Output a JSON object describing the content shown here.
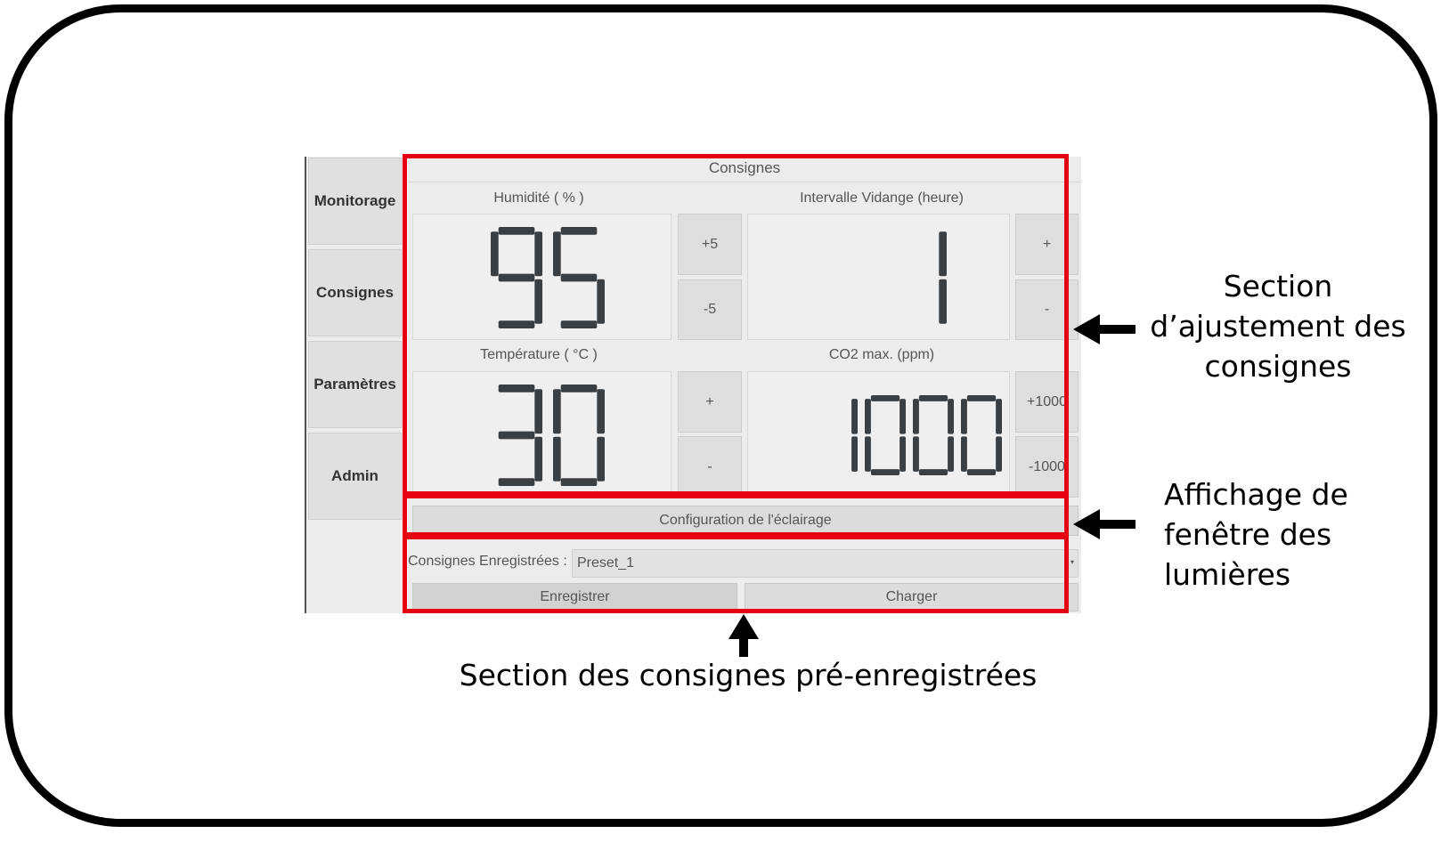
{
  "sidebar": {
    "items": [
      {
        "label": "Monitorage"
      },
      {
        "label": "Consignes"
      },
      {
        "label": "Paramètres"
      },
      {
        "label": "Admin"
      }
    ]
  },
  "main": {
    "title": "Consignes",
    "humidity": {
      "label": "Humidité ( % )",
      "value": "95",
      "plus": "+5",
      "minus": "-5"
    },
    "drain": {
      "label": "Intervalle Vidange (heure)",
      "value": "1",
      "plus": "+",
      "minus": "-"
    },
    "temperature": {
      "label": "Température ( °C )",
      "value": "30",
      "plus": "+",
      "minus": "-"
    },
    "co2": {
      "label": "CO2 max. (ppm)",
      "value": "1000",
      "plus": "+1000",
      "minus": "-1000"
    },
    "lighting_button": "Configuration de l'éclairage",
    "presets": {
      "label": "Consignes Enregistrées :",
      "selected": "Preset_1",
      "save": "Enregistrer",
      "load": "Charger"
    }
  },
  "annotations": {
    "adjust": [
      "Section",
      "d’ajustement des",
      "consignes"
    ],
    "lights": [
      "Affichage de",
      "fenêtre des",
      "lumières"
    ],
    "presets": "Section des consignes pré-enregistrées"
  },
  "colors": {
    "highlight": "#e60012",
    "segment": "#3a3f43"
  }
}
